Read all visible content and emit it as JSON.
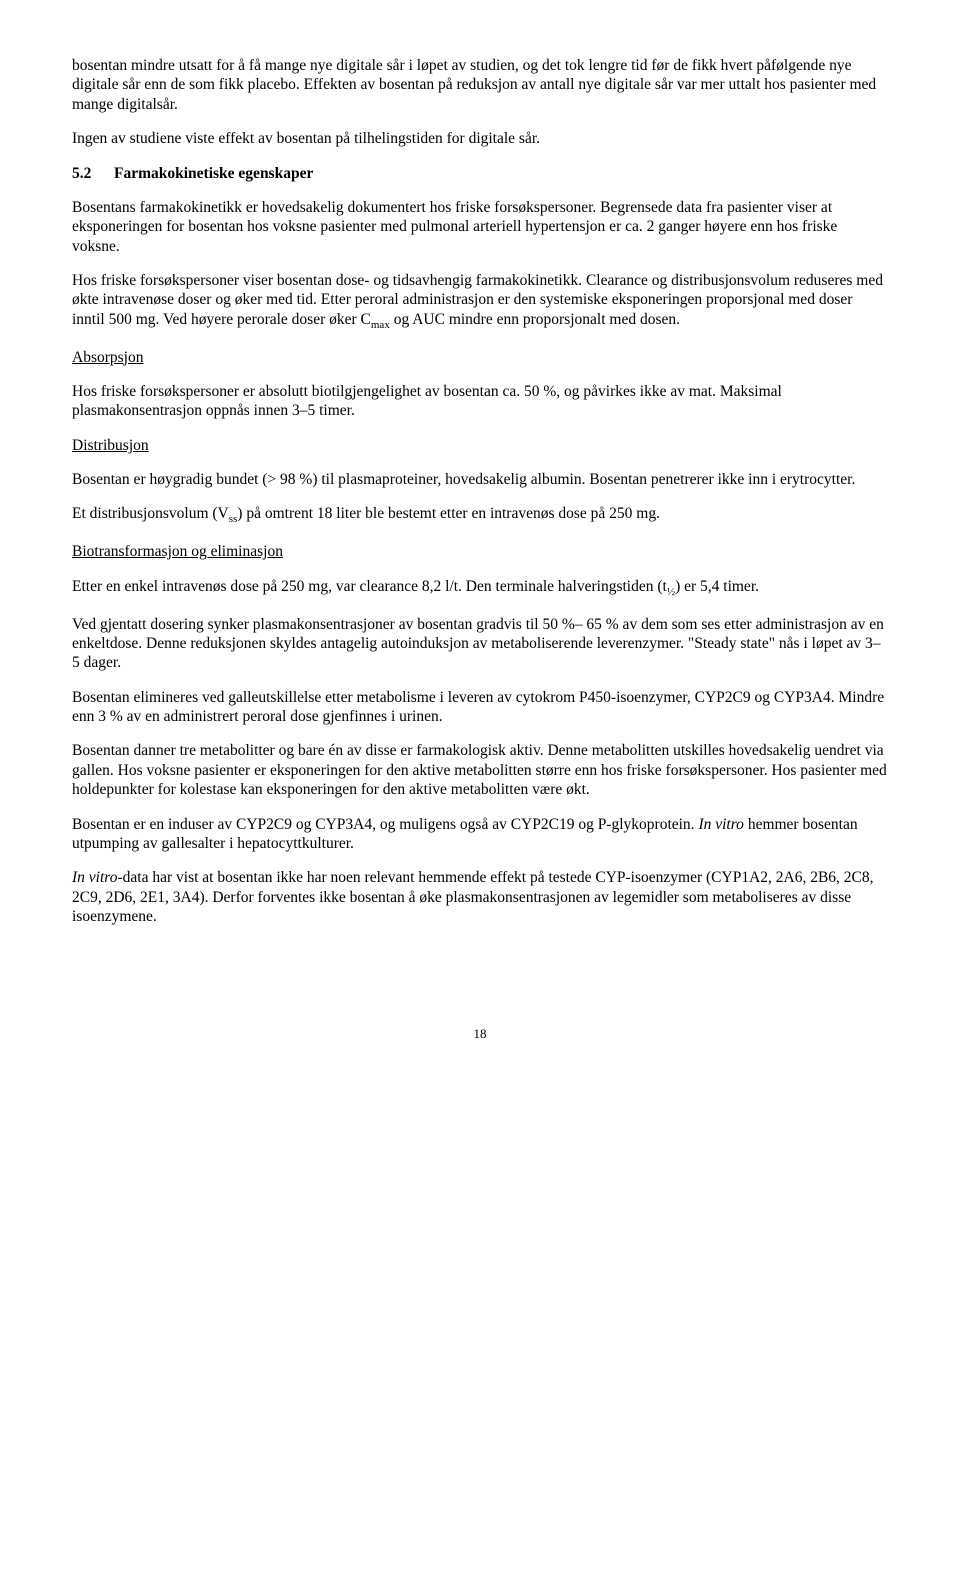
{
  "p1": "bosentan mindre utsatt for å få mange nye digitale sår i løpet av studien, og det tok lengre tid før de fikk hvert påfølgende nye digitale sår enn de som fikk placebo. Effekten av bosentan på reduksjon av antall nye digitale sår var mer uttalt hos pasienter med mange digitalsår.",
  "p2": "Ingen av studiene viste effekt av bosentan på tilhelingstiden for digitale sår.",
  "section": {
    "number": "5.2",
    "title": "Farmakokinetiske egenskaper"
  },
  "p3": "Bosentans farmakokinetikk er hovedsakelig dokumentert hos friske forsøkspersoner. Begrensede data fra pasienter viser at eksponeringen for bosentan hos voksne pasienter med pulmonal arteriell hypertensjon er ca. 2 ganger høyere enn hos friske voksne.",
  "p4a": "Hos friske forsøkspersoner viser bosentan dose- og tidsavhengig farmakokinetikk. Clearance og distribusjonsvolum reduseres med økte intravenøse doser og øker med tid. Etter peroral administrasjon er den systemiske eksponeringen proporsjonal med doser inntil 500 mg. Ved høyere perorale doser øker C",
  "p4b": " og AUC mindre enn proporsjonalt med dosen.",
  "h_abs": "Absorpsjon",
  "p5": "Hos friske forsøkspersoner er absolutt biotilgjengelighet av bosentan ca. 50 %, og påvirkes ikke av mat. Maksimal plasmakonsentrasjon oppnås innen 3–5 timer.",
  "h_dist": "Distribusjon",
  "p6": "Bosentan er høygradig bundet (> 98 %) til plasmaproteiner, hovedsakelig albumin. Bosentan penetrerer ikke inn i erytrocytter.",
  "p7a": "Et distribusjonsvolum (V",
  "p7b": ") på omtrent 18 liter ble bestemt etter en intravenøs dose på 250 mg.",
  "h_bio": "Biotransformasjon og eliminasjon",
  "p8a": "Etter en enkel intravenøs dose på 250 mg, var clearance 8,2 l/t. Den terminale halveringstiden (t",
  "p8b": ") er 5,4 timer.",
  "p9": "Ved gjentatt dosering synker plasmakonsentrasjoner av bosentan gradvis til 50 %– 65 % av dem som ses etter administrasjon av en enkeltdose. Denne reduksjonen skyldes antagelig autoinduksjon av metaboliserende leverenzymer. \"Steady state\" nås i løpet av 3–5 dager.",
  "p10": "Bosentan elimineres ved galleutskillelse etter metabolisme i leveren av cytokrom P450-isoenzymer, CYP2C9 og CYP3A4. Mindre enn 3 % av en administrert peroral dose gjenfinnes i urinen.",
  "p11": "Bosentan danner tre metabolitter og bare én av disse er farmakologisk aktiv. Denne metabolitten utskilles hovedsakelig uendret via gallen. Hos voksne pasienter er eksponeringen for den aktive metabolitten større enn hos friske forsøkspersoner. Hos pasienter med holdepunkter for kolestase kan eksponeringen for den aktive metabolitten være økt.",
  "p12a": "Bosentan er en induser av CYP2C9 og CYP3A4, og muligens også av CYP2C19 og P-glykoprotein. ",
  "p12b": "In vitro",
  "p12c": " hemmer bosentan utpumping av gallesalter i hepatocyttkulturer.",
  "p13a": "In vitro",
  "p13b": "-data har vist at bosentan ikke har noen relevant hemmende effekt på testede CYP-isoenzymer (CYP1A2, 2A6, 2B6, 2C8, 2C9, 2D6, 2E1, 3A4). Derfor forventes ikke bosentan å øke plasmakonsentrasjonen av legemidler som metaboliseres av disse isoenzymene.",
  "sub_max": "max",
  "sub_ss": "ss",
  "sub_half": "½",
  "page_no": "18"
}
